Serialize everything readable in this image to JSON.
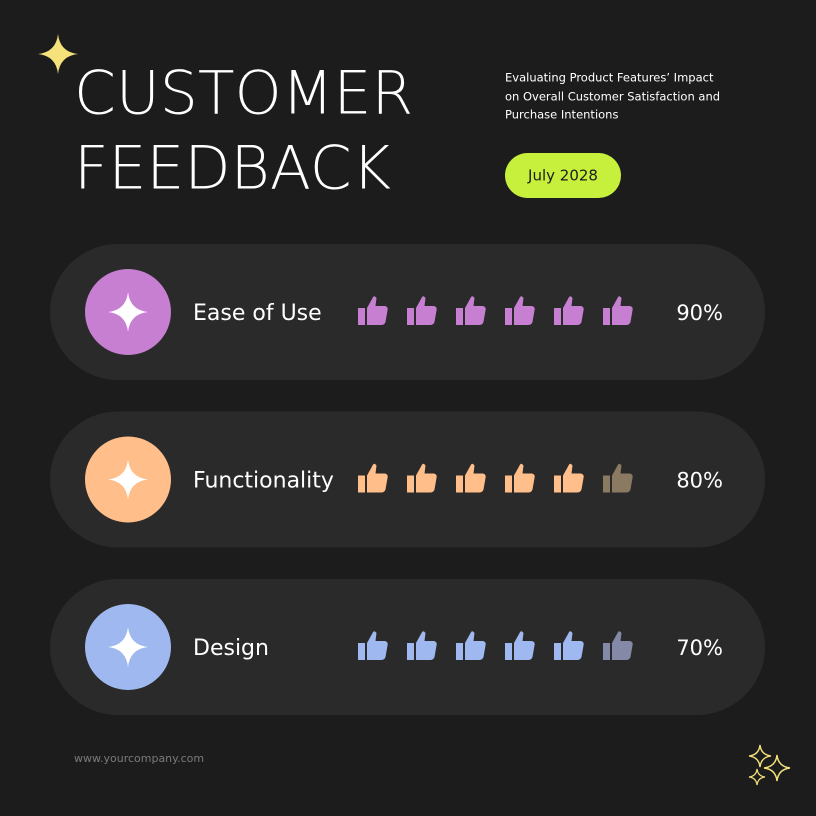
{
  "header": {
    "title_lines": [
      "CUSTOMER",
      "FEEDBACK"
    ],
    "subtitle_lines": [
      "Evaluating Product Features’ Impact",
      "on Overall Customer Satisfaction and",
      "Purchase Intentions"
    ],
    "date": "July 2028"
  },
  "items": [
    {
      "label": "Ease of Use",
      "value": "90%"
    },
    {
      "label": "Functionality",
      "value": "80%"
    },
    {
      "label": "Design",
      "value": "70%"
    }
  ],
  "footer": {
    "website": "www.yourcompany.com"
  }
}
